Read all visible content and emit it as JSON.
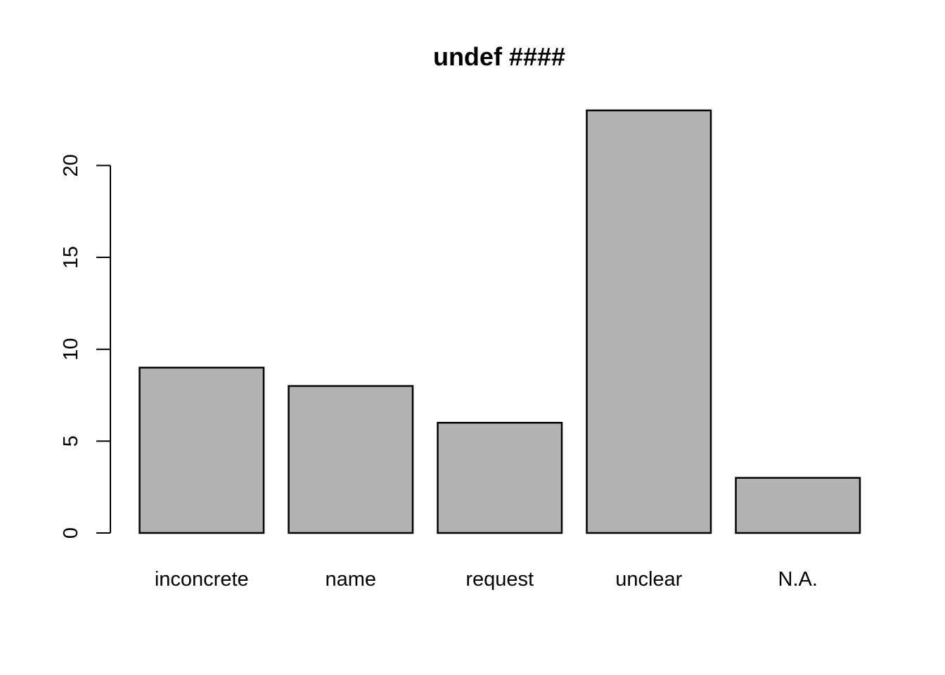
{
  "chart_data": {
    "type": "bar",
    "title": "undef ####",
    "xlabel": "",
    "ylabel": "",
    "categories": [
      "inconcrete",
      "name",
      "request",
      "unclear",
      "N.A."
    ],
    "values": [
      9,
      8,
      6,
      23,
      3
    ],
    "ylim": [
      0,
      23
    ],
    "yticks": [
      0,
      5,
      10,
      15,
      20
    ],
    "bar_color": "#b2b2b2",
    "bar_border_color": "#000000",
    "grid": false
  }
}
